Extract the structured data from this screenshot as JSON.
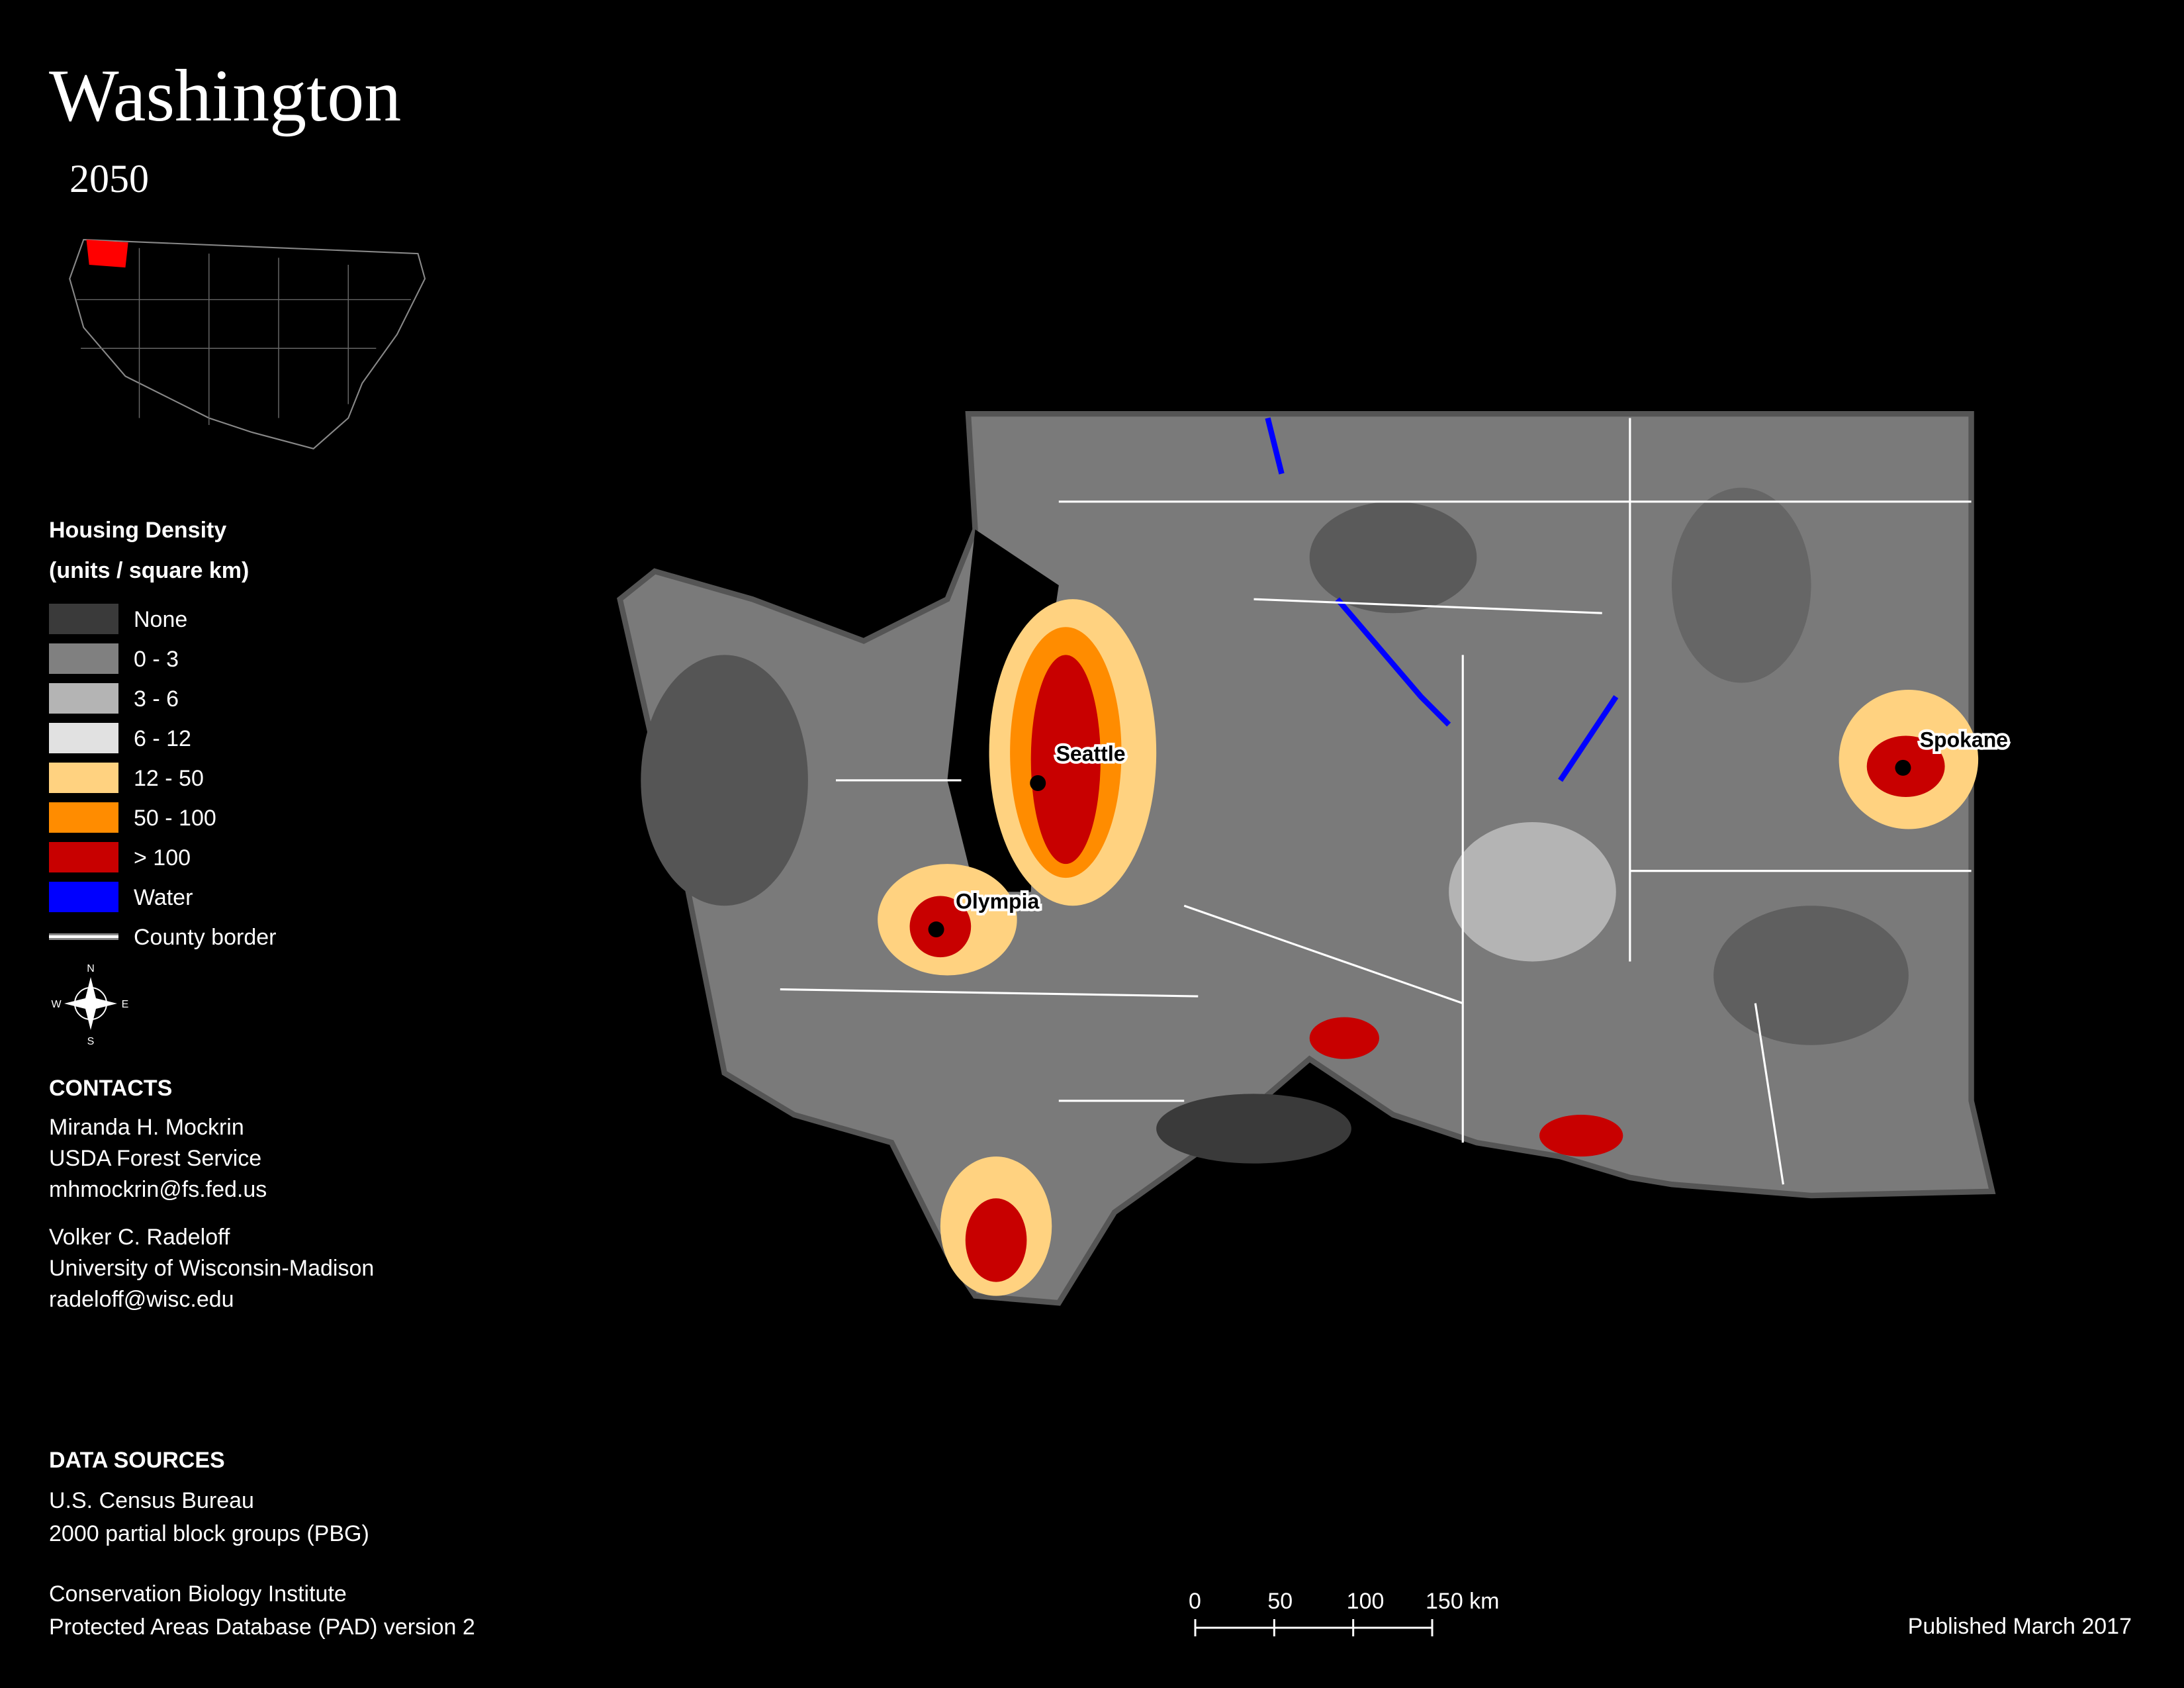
{
  "header": {
    "title": "Washington",
    "subtitle": "2050"
  },
  "legend": {
    "title": [
      "Housing Density",
      "(units / square km)"
    ],
    "items": [
      {
        "label": "None",
        "color": "#3a3a3a"
      },
      {
        "label": "0 - 3",
        "color": "#808080"
      },
      {
        "label": "3 - 6",
        "color": "#b4b4b4"
      },
      {
        "label": "6 - 12",
        "color": "#e1e1e1"
      },
      {
        "label": "12 - 50",
        "color": "#ffd280"
      },
      {
        "label": "50 - 100",
        "color": "#ff8c00"
      },
      {
        "label": "> 100",
        "color": "#c80000"
      },
      {
        "label": "Water",
        "color": "#0000ff"
      },
      {
        "label": "County border",
        "color": "#ffffff"
      }
    ]
  },
  "compass": [
    "N",
    "E",
    "S",
    "W"
  ],
  "cities": [
    {
      "name": "Seattle"
    },
    {
      "name": "Olympia"
    },
    {
      "name": "Spokane"
    }
  ],
  "contacts": {
    "heading": "CONTACTS",
    "people": [
      [
        "Miranda H. Mockrin",
        "USDA Forest Service",
        "mhmockrin@fs.fed.us"
      ],
      [
        "Volker C. Radeloff",
        "University of Wisconsin-Madison",
        "radeloff@wisc.edu"
      ]
    ]
  },
  "data_sources": {
    "heading": "DATA SOURCES",
    "groups": [
      [
        "U.S. Census Bureau",
        "2000 partial block groups (PBG)"
      ],
      [
        "Conservation Biology Institute",
        "Protected Areas Database (PAD) version 2"
      ]
    ]
  },
  "scale_bar": {
    "ticks": [
      0,
      50,
      100,
      {
        "value": 150,
        "label": "150 km"
      }
    ]
  },
  "footer": {
    "published": "Published March 2017"
  }
}
